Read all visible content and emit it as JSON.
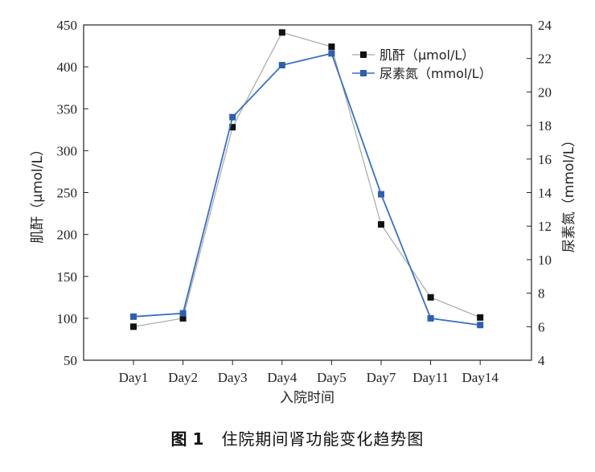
{
  "chart_data": {
    "type": "line",
    "categories": [
      "Day1",
      "Day2",
      "Day3",
      "Day4",
      "Day5",
      "Day7",
      "Day11",
      "Day14"
    ],
    "xlabel": "入院时间",
    "ylabel_left": "肌酐（μmol/L）",
    "ylabel_right": "尿素氮（mmol/L）",
    "ylim_left": [
      50,
      450
    ],
    "yticks_left": [
      50,
      100,
      150,
      200,
      250,
      300,
      350,
      400,
      450
    ],
    "ylim_right": [
      4,
      24
    ],
    "yticks_right": [
      4,
      6,
      8,
      10,
      12,
      14,
      16,
      18,
      20,
      22,
      24
    ],
    "grid": false,
    "legend_position": "top-right",
    "series": [
      {
        "name": "肌酐（μmol/L）",
        "axis": "left",
        "color": "#111111",
        "line_color": "#a8a8a8",
        "values": [
          90,
          100,
          328,
          441,
          424,
          212,
          125,
          101
        ]
      },
      {
        "name": "尿素氮（mmol/L）",
        "axis": "right",
        "color": "#2f5fae",
        "line_color": "#3a6fc2",
        "values": [
          6.6,
          6.8,
          18.5,
          21.6,
          22.3,
          13.9,
          6.5,
          6.1
        ]
      }
    ]
  },
  "caption": {
    "number": "图 1",
    "text": "住院期间肾功能变化趋势图"
  }
}
